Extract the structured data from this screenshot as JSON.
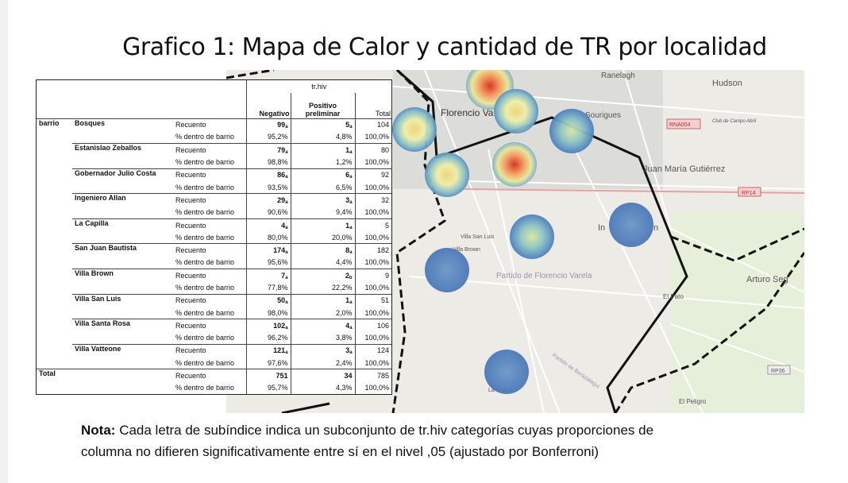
{
  "title": "Grafico 1: Mapa de Calor y cantidad de TR por localidad",
  "table": {
    "header": "tr.hiv",
    "columns": [
      "Negativo",
      "Positivo preliminar",
      "Total"
    ],
    "group": "barrio",
    "row_labels": [
      "Recuento",
      "% dentro de barrio"
    ],
    "rows": [
      {
        "name": "Bosques",
        "recuento": [
          "99",
          "a",
          "5",
          "a",
          "104"
        ],
        "pct": [
          "95,2%",
          "4,8%",
          "100,0%"
        ]
      },
      {
        "name": "Estanislao Zeballos",
        "recuento": [
          "79",
          "a",
          "1",
          "a",
          "80"
        ],
        "pct": [
          "98,8%",
          "1,2%",
          "100,0%"
        ]
      },
      {
        "name": "Gobernador Julio Costa",
        "recuento": [
          "86",
          "a",
          "6",
          "a",
          "92"
        ],
        "pct": [
          "93,5%",
          "6,5%",
          "100,0%"
        ]
      },
      {
        "name": "Ingeniero Allan",
        "recuento": [
          "29",
          "a",
          "3",
          "a",
          "32"
        ],
        "pct": [
          "90,6%",
          "9,4%",
          "100,0%"
        ]
      },
      {
        "name": "La Capilla",
        "recuento": [
          "4",
          "a",
          "1",
          "a",
          "5"
        ],
        "pct": [
          "80,0%",
          "20,0%",
          "100,0%"
        ]
      },
      {
        "name": "San Juan Bautista",
        "recuento": [
          "174",
          "a",
          "8",
          "a",
          "182"
        ],
        "pct": [
          "95,6%",
          "4,4%",
          "100,0%"
        ]
      },
      {
        "name": "Villa Brown",
        "recuento": [
          "7",
          "a",
          "2",
          "b",
          "9"
        ],
        "pct": [
          "77,8%",
          "22,2%",
          "100,0%"
        ]
      },
      {
        "name": "Villa San Luis",
        "recuento": [
          "50",
          "a",
          "1",
          "a",
          "51"
        ],
        "pct": [
          "98,0%",
          "2,0%",
          "100,0%"
        ]
      },
      {
        "name": "Villa Santa Rosa",
        "recuento": [
          "102",
          "a",
          "4",
          "a",
          "106"
        ],
        "pct": [
          "96,2%",
          "3,8%",
          "100,0%"
        ]
      },
      {
        "name": "Villa Vatteone",
        "recuento": [
          "121",
          "a",
          "3",
          "a",
          "124"
        ],
        "pct": [
          "97,6%",
          "2,4%",
          "100,0%"
        ]
      }
    ],
    "total": {
      "name": "Total",
      "recuento": [
        "751",
        "34",
        "785"
      ],
      "pct": [
        "95,7%",
        "4,3%",
        "100,0%"
      ]
    }
  },
  "map_labels": [
    "Ranelagh",
    "Hudson",
    "Florencio Va",
    "Sourigues",
    "RNA004",
    "Club de Campo Abril",
    "Juan María Gutiérrez",
    "RP14",
    "Villa San Luis",
    "Villa Brown",
    "In",
    "n",
    "Partido de Florencio Varela",
    "Arturo Seg",
    "El Pato",
    "RP36",
    "Partido de Berazategui",
    "La Capilla",
    "El Peligro"
  ],
  "note": {
    "label": "Nota:",
    "line1": "Cada letra de subíndice indica un subconjunto de tr.hiv categorías cuyas proporciones de",
    "line2": "columna no difieren significativamente entre sí en el nivel ,05 (ajustado por Bonferroni)"
  }
}
